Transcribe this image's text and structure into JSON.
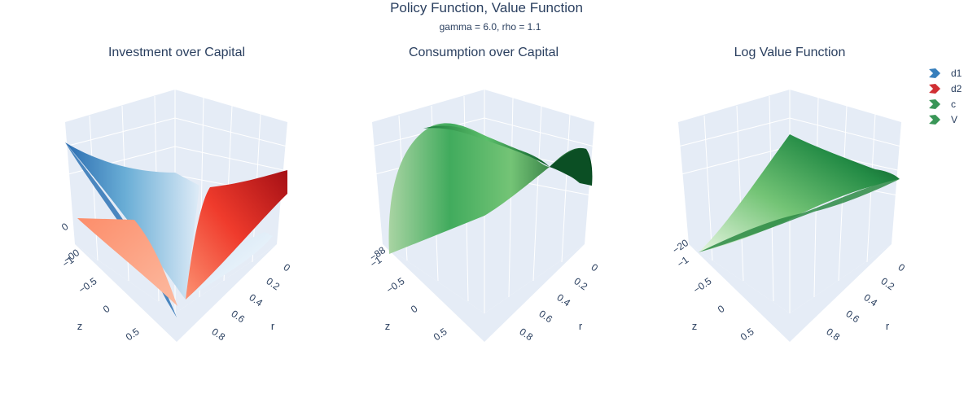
{
  "title": "Policy Function, Value Function",
  "subtitle": "gamma = 6.0, rho = 1.1",
  "chart_data": [
    {
      "type": "surface",
      "title": "Investment over Capital",
      "xlabel": "r",
      "ylabel": "z",
      "x_ticks": [
        "0",
        "0.2",
        "0.4",
        "0.6",
        "0.8"
      ],
      "y_ticks": [
        "−1",
        "−0.5",
        "0",
        "0.5"
      ],
      "z_ticks": [
        "−00",
        "0"
      ],
      "series": [
        {
          "name": "d1",
          "colorscale": "Blues"
        },
        {
          "name": "d2",
          "colorscale": "Reds"
        }
      ]
    },
    {
      "type": "surface",
      "title": "Consumption over Capital",
      "xlabel": "r",
      "ylabel": "z",
      "x_ticks": [
        "0",
        "0.2",
        "0.4",
        "0.6",
        "0.8"
      ],
      "y_ticks": [
        "−1",
        "−0.5",
        "0",
        "0.5"
      ],
      "z_ticks": [
        "−88"
      ],
      "series": [
        {
          "name": "c",
          "colorscale": "Greens"
        }
      ]
    },
    {
      "type": "surface",
      "title": "Log Value Function",
      "xlabel": "r",
      "ylabel": "z",
      "x_ticks": [
        "0",
        "0.2",
        "0.4",
        "0.6",
        "0.8"
      ],
      "y_ticks": [
        "−1",
        "−0.5",
        "0",
        "0.5"
      ],
      "z_ticks": [
        "−20"
      ],
      "series": [
        {
          "name": "V",
          "colorscale": "Greens"
        }
      ]
    }
  ],
  "legend": [
    {
      "name": "d1",
      "color": "#2171b5"
    },
    {
      "name": "d2",
      "color": "#cb181d"
    },
    {
      "name": "c",
      "color": "#238b45"
    },
    {
      "name": "V",
      "color": "#238b45"
    }
  ]
}
